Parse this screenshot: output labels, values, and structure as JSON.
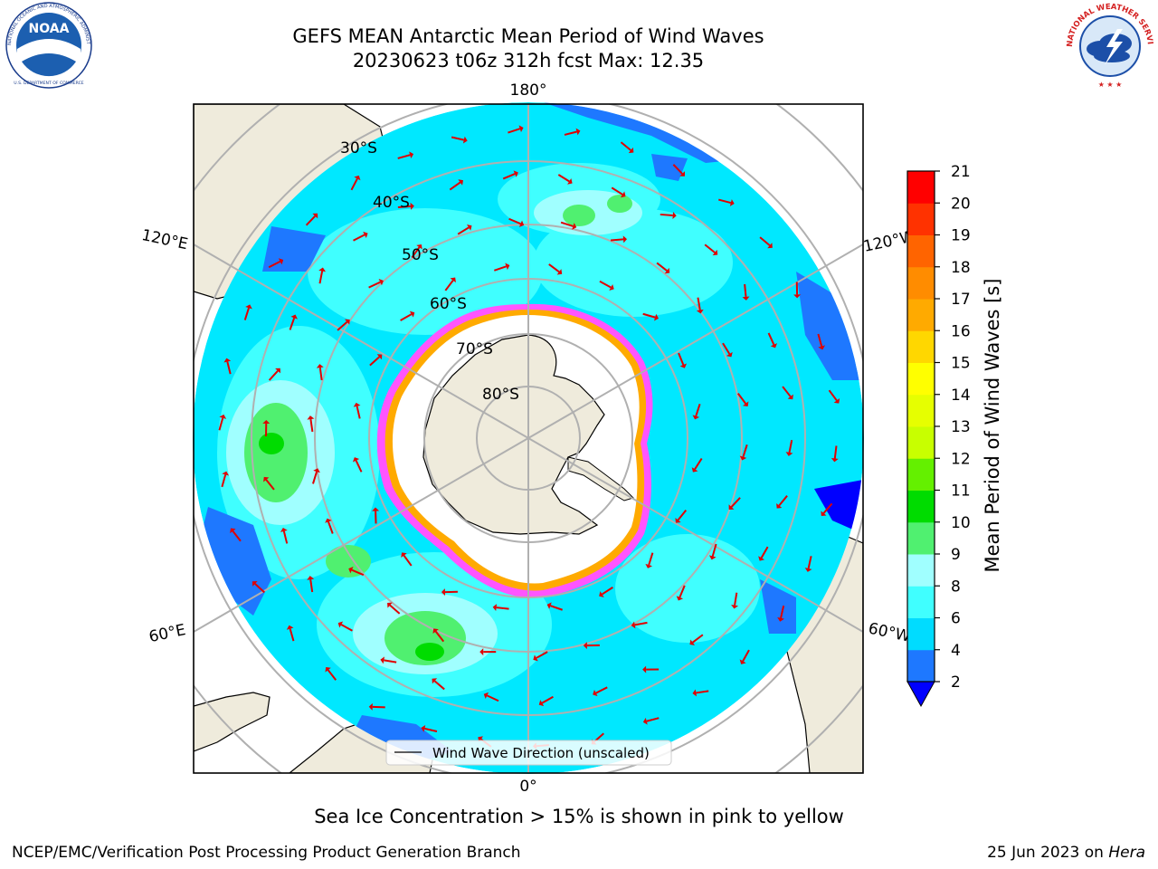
{
  "title": {
    "line1": "GEFS MEAN Antarctic Mean Period of Wind Waves",
    "line2": "20230623 t06z 312h fcst   Max: 12.35"
  },
  "logos": {
    "left": {
      "name": "NOAA",
      "ring_text": "NATIONAL OCEANIC AND ATMOSPHERIC ADMINISTRATION",
      "bottom_text": "U.S. DEPARTMENT OF COMMERCE"
    },
    "right": {
      "ring_text": "NATIONAL WEATHER SERVICE"
    }
  },
  "map": {
    "projection": "south-polar-stereographic",
    "longitude_labels": {
      "top": "180°",
      "bottom": "0°",
      "left_upper": "120°E",
      "left_lower": "60°E",
      "right_upper": "120°W",
      "right_lower": "60°W"
    },
    "latitude_labels": [
      "30°S",
      "40°S",
      "50°S",
      "60°S",
      "70°S",
      "80°S"
    ],
    "legend": "Wind Wave Direction (unscaled)"
  },
  "colorbar": {
    "label": "Mean Period of Wind Waves [s]",
    "ticks": [
      "2",
      "4",
      "6",
      "8",
      "9",
      "10",
      "11",
      "12",
      "13",
      "14",
      "15",
      "16",
      "17",
      "18",
      "19",
      "20",
      "21"
    ],
    "colors": [
      "#1e78ff",
      "#00dcff",
      "#40ffff",
      "#a0ffff",
      "#50f070",
      "#00dc00",
      "#64f000",
      "#c8ff00",
      "#e6ff00",
      "#ffff00",
      "#ffd700",
      "#ffaa00",
      "#ff8c00",
      "#ff6400",
      "#ff3200",
      "#ff0000"
    ],
    "under_color": "#0000ff"
  },
  "note": "Sea Ice Concentration > 15% is shown in pink to yellow",
  "footer": {
    "left": "NCEP/EMC/Verification Post Processing Product Generation Branch",
    "date": "25 Jun 2023 on ",
    "host": "Hera"
  }
}
